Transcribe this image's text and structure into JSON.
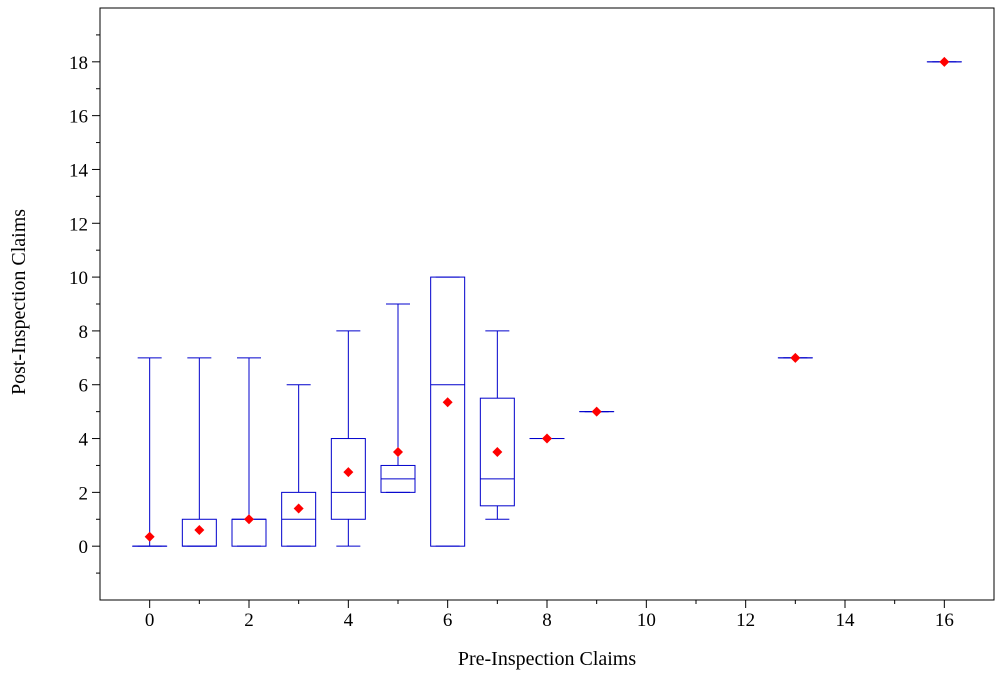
{
  "chart_data": {
    "type": "box",
    "xlabel": "Pre-Inspection Claims",
    "ylabel": "Post-Inspection Claims",
    "xlim": [
      -1,
      17
    ],
    "ylim": [
      -2,
      20
    ],
    "xticks": [
      0,
      2,
      4,
      6,
      8,
      10,
      12,
      14,
      16
    ],
    "yticks": [
      0,
      2,
      4,
      6,
      8,
      10,
      12,
      14,
      16,
      18
    ],
    "grid": false,
    "box_color": "#0000cc",
    "mean_color": "#ff0000",
    "boxes": [
      {
        "x": 0,
        "min": 0,
        "q1": 0,
        "median": 0,
        "q3": 0,
        "max": 7,
        "mean": 0.35
      },
      {
        "x": 1,
        "min": 0,
        "q1": 0,
        "median": 0,
        "q3": 1,
        "max": 7,
        "mean": 0.6
      },
      {
        "x": 2,
        "min": 0,
        "q1": 0,
        "median": 1,
        "q3": 1,
        "max": 7,
        "mean": 1.0
      },
      {
        "x": 3,
        "min": 0,
        "q1": 0,
        "median": 1,
        "q3": 2,
        "max": 6,
        "mean": 1.4
      },
      {
        "x": 4,
        "min": 0,
        "q1": 1,
        "median": 2,
        "q3": 4,
        "max": 8,
        "mean": 2.75
      },
      {
        "x": 5,
        "min": 2,
        "q1": 2,
        "median": 2.5,
        "q3": 3,
        "max": 9,
        "mean": 3.5
      },
      {
        "x": 6,
        "min": 0,
        "q1": 0,
        "median": 6,
        "q3": 10,
        "max": 10,
        "mean": 5.35
      },
      {
        "x": 7,
        "min": 1,
        "q1": 1.5,
        "median": 2.5,
        "q3": 5.5,
        "max": 8,
        "mean": 3.5
      },
      {
        "x": 8,
        "min": 4,
        "q1": 4,
        "median": 4,
        "q3": 4,
        "max": 4,
        "mean": 4
      },
      {
        "x": 9,
        "min": 5,
        "q1": 5,
        "median": 5,
        "q3": 5,
        "max": 5,
        "mean": 5
      },
      {
        "x": 13,
        "min": 7,
        "q1": 7,
        "median": 7,
        "q3": 7,
        "max": 7,
        "mean": 7
      },
      {
        "x": 16,
        "min": 18,
        "q1": 18,
        "median": 18,
        "q3": 18,
        "max": 18,
        "mean": 18
      }
    ]
  }
}
